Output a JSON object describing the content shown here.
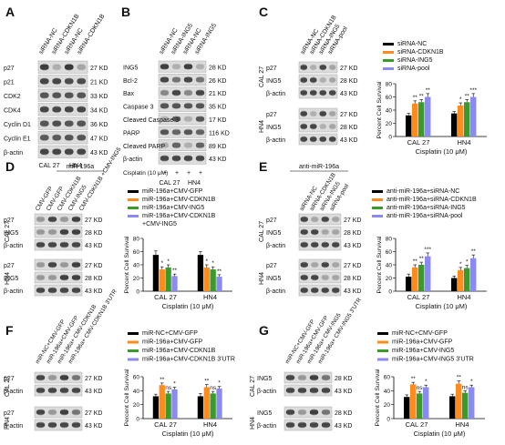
{
  "colors": {
    "black": "#000000",
    "orange": "#ff8c1a",
    "green": "#3a9a2a",
    "blue": "#8a8af0"
  },
  "panels": {
    "A": {
      "label": "A",
      "lanes": [
        "siRNA-NC",
        "siRNA-CDKN1B",
        "siRNA-NC",
        "siRNA-CDKN1B"
      ],
      "rows": [
        "p27",
        "p21",
        "CDK2",
        "CDK4",
        "Cyclin D1",
        "Cyclin E1",
        "β-actin"
      ],
      "kd": [
        "27 KD",
        "21 KD",
        "33 KD",
        "34 KD",
        "36 KD",
        "47 KD",
        "43 KD"
      ],
      "cells": [
        "CAL 27",
        "HN4"
      ]
    },
    "B": {
      "label": "B",
      "lanes": [
        "siRNA-NC",
        "siRNA-ING5",
        "siRNA-NC",
        "siRNA-ING5"
      ],
      "rows": [
        "ING5",
        "Bcl-2",
        "Bax",
        "Caspase 3",
        "Cleaved Caspase 3",
        "PARP",
        "Cleaved PARP",
        "β-actin"
      ],
      "kd": [
        "28 KD",
        "26 KD",
        "21 KD",
        "35 KD",
        "17 KD",
        "116 KD",
        "89 KD",
        "43 KD"
      ],
      "cisplatin": "Cisplatin (10 μM)",
      "signs": [
        "+",
        "+",
        "+",
        "+"
      ],
      "cells": [
        "CAL 27",
        "HN4"
      ]
    },
    "C": {
      "label": "C",
      "lanes": [
        "siRNA-NC",
        "siRNA-CDKN1B",
        "siRNA-ING5",
        "siRNA-pool"
      ],
      "blot1": [
        "p27",
        "ING5",
        "β-actin"
      ],
      "blot2": [
        "p27",
        "ING5",
        "β-actin"
      ],
      "kd": [
        "27 KD",
        "28 KD",
        "43 KD"
      ],
      "cells": [
        "CAL 27",
        "HN4"
      ],
      "legend": [
        "siRNA-NC",
        "siRNA-CDKN1B",
        "siRNA-ING5",
        "siRNA-pool"
      ],
      "ylabel": "Percent Cell Survival",
      "xlabel": "Cisplatin (10 μM)"
    },
    "D": {
      "label": "D",
      "header": "miR-196a",
      "lanes": [
        "CMV-GFP",
        "CMV-GFP",
        "CMV-CDKN1B",
        "CMV-ING5",
        "CMV-CDKN1B +CMV-ING5"
      ],
      "blot1": [
        "p27",
        "ING5",
        "β-actin"
      ],
      "blot2": [
        "p27",
        "ING5",
        "β-actin"
      ],
      "kd": [
        "27 KD",
        "28 KD",
        "43 KD"
      ],
      "cells": [
        "CAL 27",
        "HN4"
      ],
      "legend": [
        "miR-196a+CMV-GFP",
        "miR-196a+CMV-CDKN1B",
        "miR-196a+CMV-ING5",
        "miR-196a+CMV-CDKN1B",
        "+CMV-ING5"
      ],
      "ylabel": "Percent Cell Survival",
      "xlabel": "Cisplatin (10 μM)"
    },
    "E": {
      "label": "E",
      "header": "anti-miR-196a",
      "lanes": [
        "siRNA-NC",
        "siRNA-CDKN1B",
        "siRNA-ING5",
        "siRNA-pool"
      ],
      "blot1": [
        "p27",
        "ING5",
        "β-actin"
      ],
      "blot2": [
        "p27",
        "ING5",
        "β-actin"
      ],
      "kd": [
        "27 KD",
        "28 KD",
        "43 KD"
      ],
      "cells": [
        "CAL 27",
        "HN4"
      ],
      "legend": [
        "anti-miR-196a+siRNA-NC",
        "anti-miR-196a+siRNA-CDKN1B",
        "anti-miR-196a+siRNA-ING5",
        "anti-miR-196a+siRNA-pool"
      ],
      "ylabel": "Percent Cell Survival",
      "xlabel": "Cisplatin (10 μM)"
    },
    "F": {
      "label": "F",
      "lanes": [
        "miR-NC+CMV-GFP",
        "miR-196a+CMV-GFP",
        "miR-196a+ CMV-CDKN1B",
        "miR-196a+ CMV-CDKN1B 3'UTR"
      ],
      "blot1": [
        "p27",
        "β-actin"
      ],
      "blot2": [
        "p27",
        "β-actin"
      ],
      "kd": [
        "27 KD",
        "43 KD"
      ],
      "cells": [
        "CAL 27",
        "HN4"
      ],
      "legend": [
        "miR-NC+CMV-GFP",
        "miR-196a+CMV-GFP",
        "miR-196a+CMV-CDKN1B",
        "miR-196a+CMV-CDKN1B 3'UTR"
      ],
      "ylabel": "Percent Cell Survival",
      "xlabel": "Cisplatin (10 μM)"
    },
    "G": {
      "label": "G",
      "lanes": [
        "miR-NC+CMV-GFP",
        "miR-196a+CMV-GFP",
        "miR-196a+ CMV-ING5",
        "miR-196a+ CMV-ING5 3'UTR"
      ],
      "blot1": [
        "ING5",
        "β-actin"
      ],
      "blot2": [
        "ING5",
        "β-actin"
      ],
      "kd": [
        "28 KD",
        "43 KD"
      ],
      "cells": [
        "CAL 27",
        "HN4"
      ],
      "legend": [
        "miR-NC+CMV-GFP",
        "miR-196a+CMV-GFP",
        "miR-196a+CMV-ING5",
        "miR-196a+CMV-ING5 3'UTR"
      ],
      "ylabel": "Percent Cell Survival",
      "xlabel": "Cisplatin (10 μM)"
    }
  },
  "chart_data": [
    {
      "panel": "C",
      "type": "bar",
      "categories": [
        "CAL 27",
        "HN4"
      ],
      "ylim": [
        0,
        80
      ],
      "yticks": [
        0,
        20,
        40,
        60,
        80
      ],
      "series": [
        {
          "name": "siRNA-NC",
          "values": [
            32,
            35
          ],
          "err": [
            3,
            3
          ],
          "sig": [
            "",
            ""
          ]
        },
        {
          "name": "siRNA-CDKN1B",
          "values": [
            50,
            47
          ],
          "err": [
            4,
            4
          ],
          "sig": [
            "**",
            "*"
          ]
        },
        {
          "name": "siRNA-ING5",
          "values": [
            52,
            52
          ],
          "err": [
            4,
            4
          ],
          "sig": [
            "**",
            "**"
          ]
        },
        {
          "name": "siRNA-pool",
          "values": [
            60,
            60
          ],
          "err": [
            5,
            5
          ],
          "sig": [
            "**",
            "***"
          ]
        }
      ]
    },
    {
      "panel": "D",
      "type": "bar",
      "categories": [
        "CAL 27",
        "HN4"
      ],
      "ylim": [
        0,
        80
      ],
      "yticks": [
        0,
        20,
        40,
        60,
        80
      ],
      "series": [
        {
          "name": "miR-196a+CMV-GFP",
          "values": [
            55,
            55
          ],
          "err": [
            6,
            5
          ],
          "sig": [
            "",
            ""
          ]
        },
        {
          "name": "miR-196a+CMV-CDKN1B",
          "values": [
            33,
            36
          ],
          "err": [
            4,
            4
          ],
          "sig": [
            "*",
            "*"
          ]
        },
        {
          "name": "miR-196a+CMV-ING5",
          "values": [
            36,
            33
          ],
          "err": [
            4,
            4
          ],
          "sig": [
            "*",
            "*"
          ]
        },
        {
          "name": "miR-196a+CMV-CDKN1B +CMV-ING5",
          "values": [
            23,
            22
          ],
          "err": [
            3,
            3
          ],
          "sig": [
            "**",
            "**"
          ]
        }
      ]
    },
    {
      "panel": "E",
      "type": "bar",
      "categories": [
        "CAL 27",
        "HN4"
      ],
      "ylim": [
        0,
        80
      ],
      "yticks": [
        0,
        20,
        40,
        60,
        80
      ],
      "series": [
        {
          "name": "anti-miR-196a+siRNA-NC",
          "values": [
            22,
            20
          ],
          "err": [
            4,
            3
          ],
          "sig": [
            "",
            ""
          ]
        },
        {
          "name": "anti-miR-196a+siRNA-CDKN1B",
          "values": [
            36,
            32
          ],
          "err": [
            4,
            4
          ],
          "sig": [
            "**",
            "*"
          ]
        },
        {
          "name": "anti-miR-196a+siRNA-ING5",
          "values": [
            40,
            35
          ],
          "err": [
            4,
            4
          ],
          "sig": [
            "**",
            "*"
          ]
        },
        {
          "name": "anti-miR-196a+siRNA-pool",
          "values": [
            53,
            50
          ],
          "err": [
            5,
            5
          ],
          "sig": [
            "***",
            "**"
          ]
        }
      ]
    },
    {
      "panel": "F",
      "type": "bar",
      "categories": [
        "CAL 27",
        "HN4"
      ],
      "ylim": [
        0,
        60
      ],
      "yticks": [
        0,
        20,
        40,
        60
      ],
      "series": [
        {
          "name": "miR-NC+CMV-GFP",
          "values": [
            32,
            32
          ],
          "err": [
            3,
            4
          ],
          "sig": [
            "",
            ""
          ]
        },
        {
          "name": "miR-196a+CMV-GFP",
          "values": [
            48,
            45
          ],
          "err": [
            3,
            4
          ],
          "sig": [
            "**",
            "**"
          ]
        },
        {
          "name": "miR-196a+CMV-CDKN1B",
          "values": [
            36,
            36
          ],
          "err": [
            3,
            3
          ],
          "sig": [
            "ns",
            "ns"
          ]
        },
        {
          "name": "miR-196a+CMV-CDKN1B 3'UTR",
          "values": [
            42,
            43
          ],
          "err": [
            3,
            3
          ],
          "sig": [
            "*",
            "*"
          ]
        }
      ]
    },
    {
      "panel": "G",
      "type": "bar",
      "categories": [
        "CAL 27",
        "HN4"
      ],
      "ylim": [
        0,
        60
      ],
      "yticks": [
        0,
        20,
        40,
        60
      ],
      "series": [
        {
          "name": "miR-NC+CMV-GFP",
          "values": [
            31,
            32
          ],
          "err": [
            3,
            3
          ],
          "sig": [
            "",
            ""
          ]
        },
        {
          "name": "miR-196a+CMV-GFP",
          "values": [
            49,
            50
          ],
          "err": [
            3,
            4
          ],
          "sig": [
            "**",
            "**"
          ]
        },
        {
          "name": "miR-196a+CMV-ING5",
          "values": [
            36,
            37
          ],
          "err": [
            3,
            3
          ],
          "sig": [
            "ns",
            "ns"
          ]
        },
        {
          "name": "miR-196a+CMV-ING5 3'UTR",
          "values": [
            45,
            45
          ],
          "err": [
            3,
            3
          ],
          "sig": [
            "*",
            "*"
          ]
        }
      ]
    }
  ]
}
